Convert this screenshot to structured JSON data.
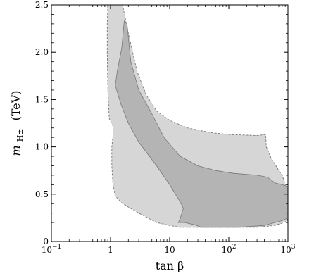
{
  "chart_data": {
    "type": "area",
    "title": "",
    "xlabel": "tan β",
    "ylabel_main": "m",
    "ylabel_sub": "H±",
    "ylabel_unit": "(TeV)",
    "xscale": "log",
    "xlim": [
      0.1,
      1000
    ],
    "ylim": [
      0,
      2.5
    ],
    "x_ticks": [
      {
        "value": 0.1,
        "base": "10",
        "exp": "−1"
      },
      {
        "value": 1,
        "base": "1",
        "exp": ""
      },
      {
        "value": 10,
        "base": "10",
        "exp": ""
      },
      {
        "value": 100,
        "base": "10",
        "exp": "2"
      },
      {
        "value": 1000,
        "base": "10",
        "exp": "3"
      }
    ],
    "y_ticks": [
      {
        "value": 0,
        "label": "0"
      },
      {
        "value": 0.5,
        "label": "0.5"
      },
      {
        "value": 1.0,
        "label": "1.0"
      },
      {
        "value": 1.5,
        "label": "1.5"
      },
      {
        "value": 2.0,
        "label": "2.0"
      },
      {
        "value": 2.5,
        "label": "2.5"
      }
    ],
    "grid": false,
    "colors": {
      "outer_fill": "#d6d6d6",
      "inner_fill": "#b4b4b4",
      "outline": "#777777"
    },
    "regions": [
      {
        "level": "outer",
        "points": [
          [
            0.9,
            2.5
          ],
          [
            1.6,
            2.5
          ],
          [
            2.0,
            2.2
          ],
          [
            2.8,
            1.8
          ],
          [
            4.0,
            1.55
          ],
          [
            6.0,
            1.38
          ],
          [
            10,
            1.28
          ],
          [
            20,
            1.2
          ],
          [
            50,
            1.15
          ],
          [
            100,
            1.13
          ],
          [
            300,
            1.12
          ],
          [
            420,
            1.13
          ],
          [
            430,
            1.0
          ],
          [
            470,
            0.95
          ],
          [
            520,
            0.88
          ],
          [
            600,
            0.82
          ],
          [
            700,
            0.75
          ],
          [
            800,
            0.7
          ],
          [
            900,
            0.6
          ],
          [
            950,
            0.5
          ],
          [
            1000,
            0.42
          ],
          [
            1000,
            0.3
          ],
          [
            980,
            0.22
          ],
          [
            850,
            0.2
          ],
          [
            600,
            0.17
          ],
          [
            300,
            0.15
          ],
          [
            100,
            0.15
          ],
          [
            30,
            0.15
          ],
          [
            15,
            0.15
          ],
          [
            10,
            0.17
          ],
          [
            6,
            0.2
          ],
          [
            3,
            0.3
          ],
          [
            1.6,
            0.4
          ],
          [
            1.2,
            0.48
          ],
          [
            1.1,
            0.6
          ],
          [
            1.05,
            0.8
          ],
          [
            1.05,
            1.0
          ],
          [
            1.1,
            1.12
          ],
          [
            1.1,
            1.22
          ],
          [
            0.95,
            1.3
          ],
          [
            0.9,
            1.6
          ],
          [
            0.88,
            2.0
          ],
          [
            0.88,
            2.3
          ],
          [
            0.9,
            2.5
          ]
        ]
      },
      {
        "level": "inner",
        "points": [
          [
            1.7,
            2.33
          ],
          [
            1.9,
            2.3
          ],
          [
            2.2,
            1.9
          ],
          [
            3.0,
            1.6
          ],
          [
            5.0,
            1.35
          ],
          [
            8.0,
            1.1
          ],
          [
            15,
            0.9
          ],
          [
            30,
            0.8
          ],
          [
            60,
            0.75
          ],
          [
            120,
            0.72
          ],
          [
            300,
            0.7
          ],
          [
            450,
            0.68
          ],
          [
            600,
            0.62
          ],
          [
            800,
            0.6
          ],
          [
            1000,
            0.58
          ],
          [
            1000,
            0.25
          ],
          [
            800,
            0.22
          ],
          [
            400,
            0.17
          ],
          [
            150,
            0.15
          ],
          [
            60,
            0.15
          ],
          [
            35,
            0.15
          ],
          [
            25,
            0.18
          ],
          [
            18,
            0.2
          ],
          [
            14,
            0.2
          ],
          [
            15,
            0.24
          ],
          [
            17,
            0.35
          ],
          [
            15,
            0.42
          ],
          [
            10,
            0.6
          ],
          [
            6,
            0.8
          ],
          [
            3,
            1.05
          ],
          [
            2,
            1.25
          ],
          [
            1.5,
            1.45
          ],
          [
            1.2,
            1.65
          ],
          [
            1.3,
            1.8
          ],
          [
            1.55,
            2.05
          ],
          [
            1.7,
            2.33
          ]
        ]
      }
    ]
  }
}
